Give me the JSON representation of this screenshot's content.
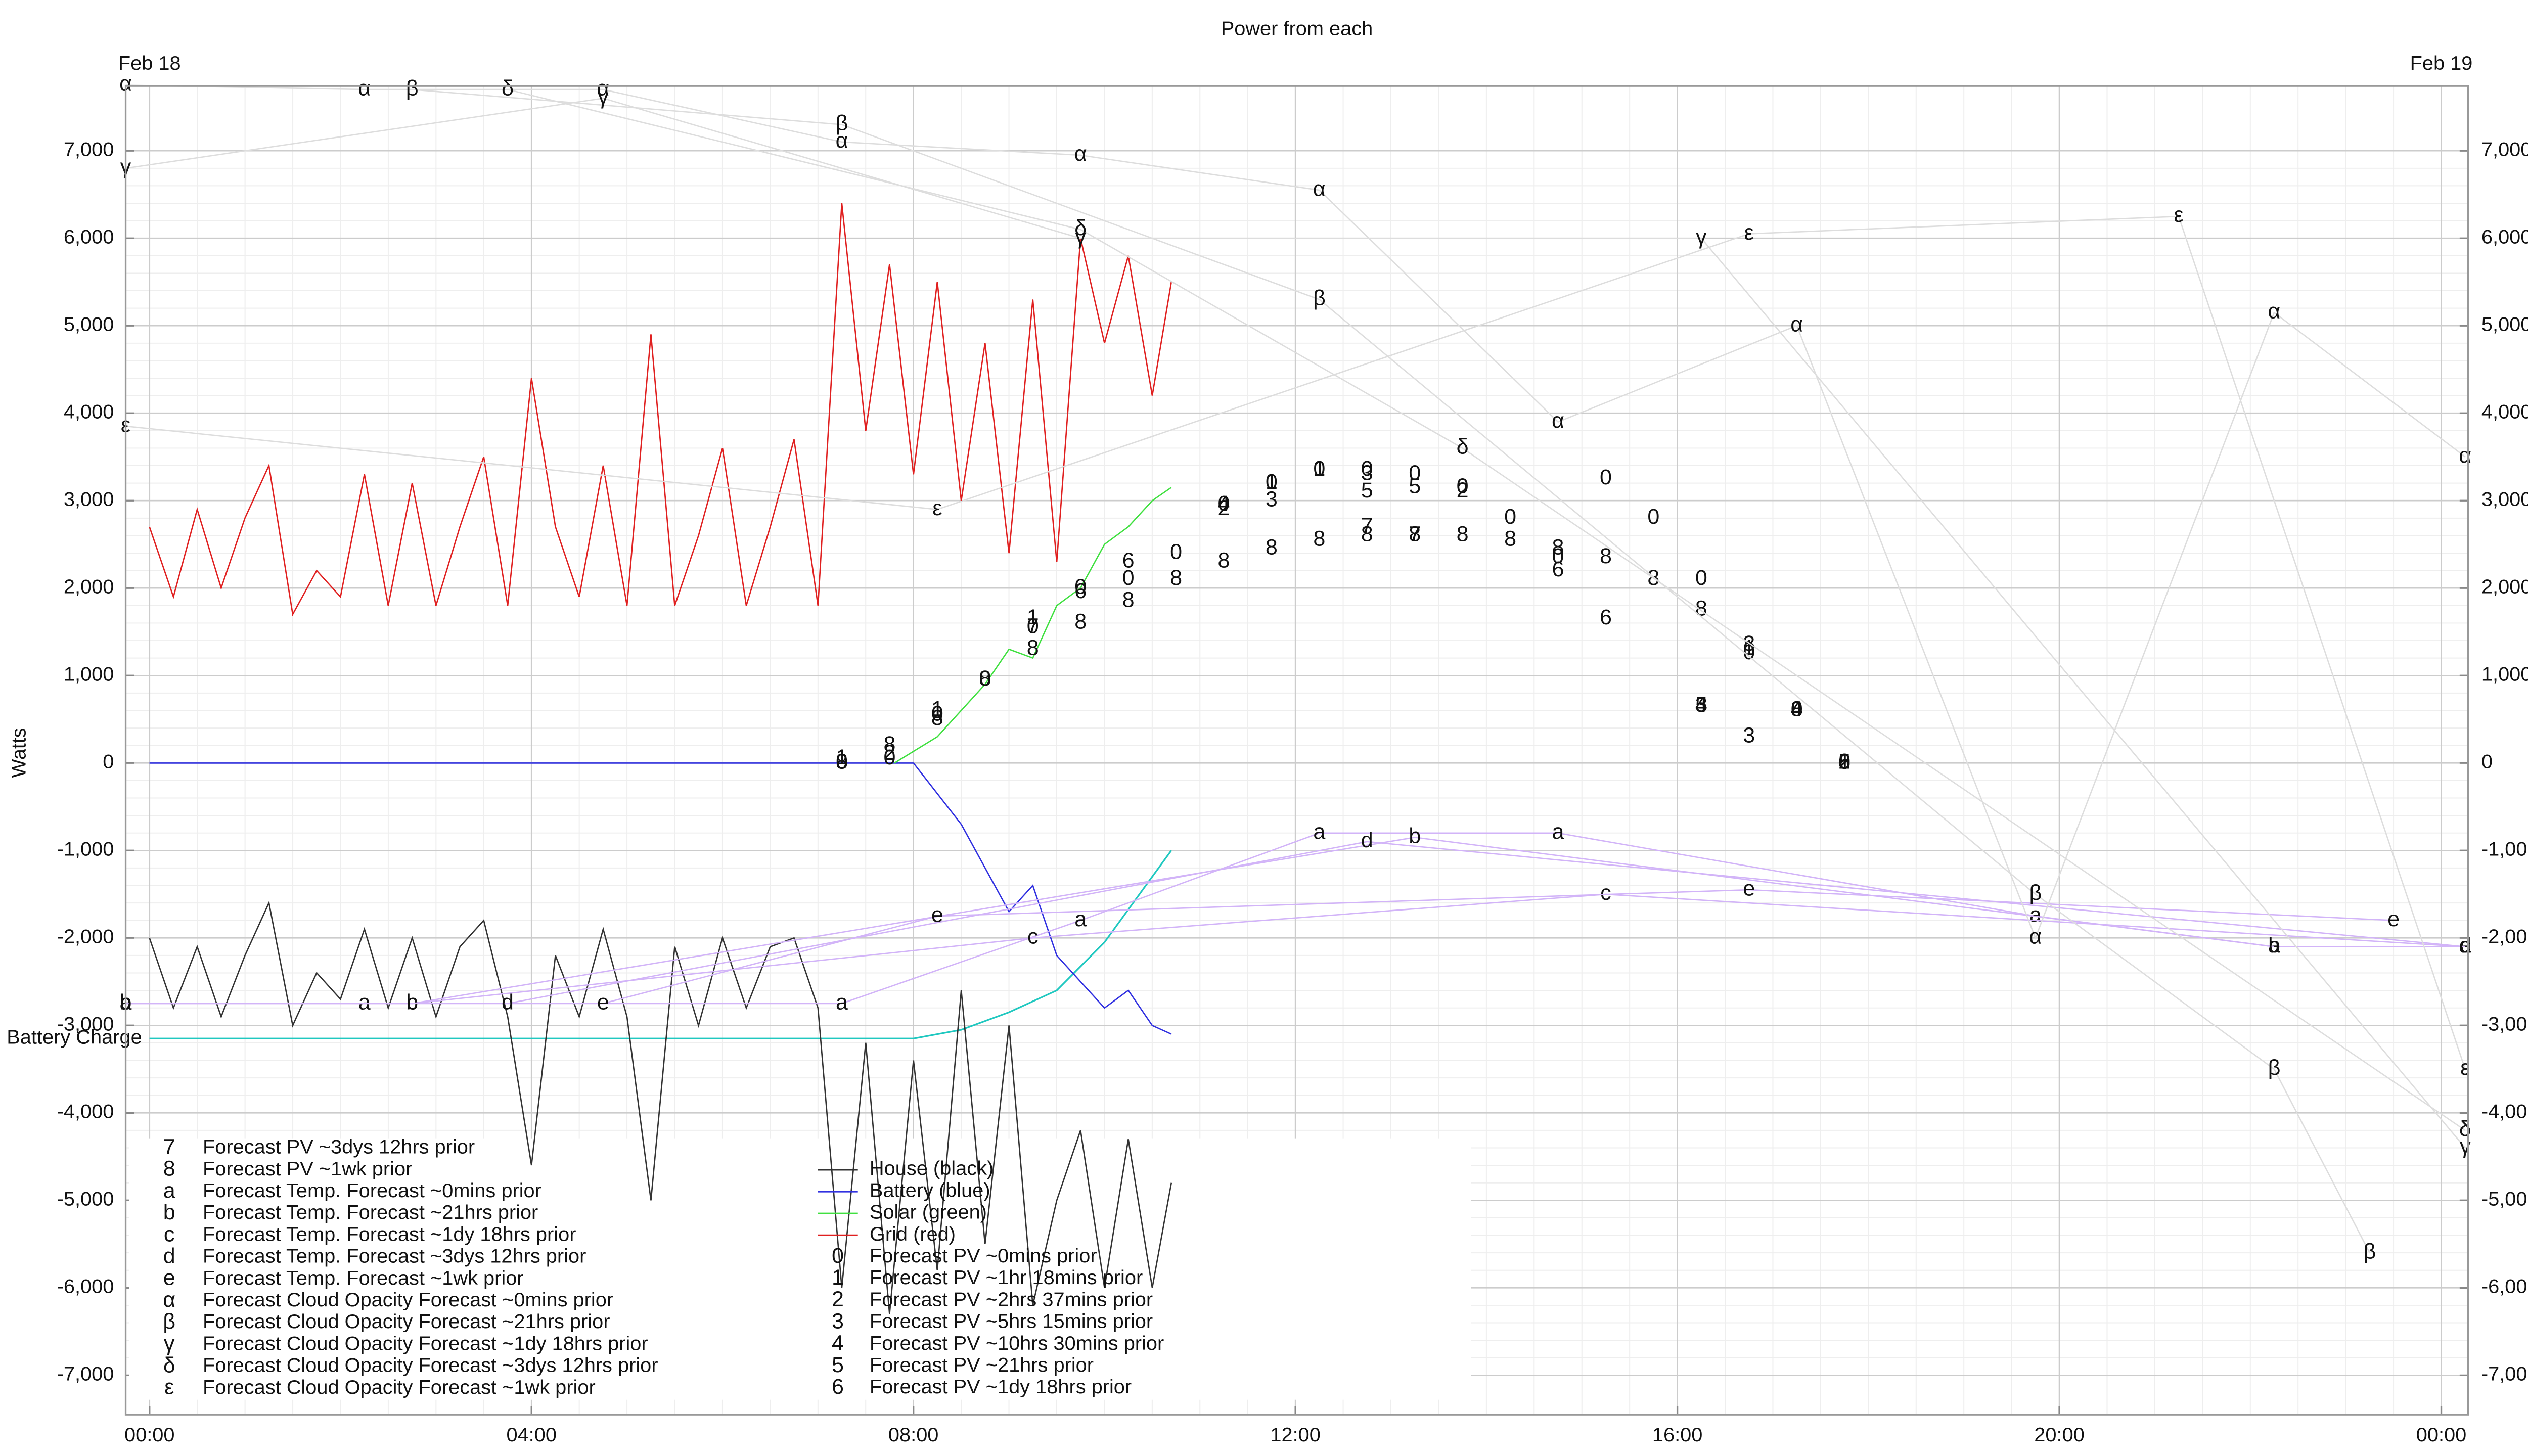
{
  "chart_data": {
    "type": "line",
    "title": "Power from each",
    "ylabel": "Watts",
    "xlim": [
      -0.25,
      24.28
    ],
    "ylim": [
      -7450,
      7740
    ],
    "grid": true,
    "minor_grid": true,
    "date_labels": [
      {
        "value": 0,
        "label": "Feb 18"
      },
      {
        "value": 24,
        "label": "Feb 19"
      }
    ],
    "xticks": [
      {
        "value": 0,
        "label": "00:00"
      },
      {
        "value": 4,
        "label": "04:00"
      },
      {
        "value": 8,
        "label": "08:00"
      },
      {
        "value": 12,
        "label": "12:00"
      },
      {
        "value": 16,
        "label": "16:00"
      },
      {
        "value": 20,
        "label": "20:00"
      },
      {
        "value": 24,
        "label": "00:00"
      }
    ],
    "yticks": [
      {
        "value": -7000,
        "label": "-7,000"
      },
      {
        "value": -6000,
        "label": "-6,000"
      },
      {
        "value": -5000,
        "label": "-5,000"
      },
      {
        "value": -4000,
        "label": "-4,000"
      },
      {
        "value": -3000,
        "label": "-3,000"
      },
      {
        "value": -2000,
        "label": "-2,000"
      },
      {
        "value": -1000,
        "label": "-1,000"
      },
      0,
      {
        "value": 1000,
        "label": "1,000"
      },
      {
        "value": 2000,
        "label": "2,000"
      },
      {
        "value": 3000,
        "label": "3,000"
      },
      {
        "value": 4000,
        "label": "4,000"
      },
      {
        "value": 5000,
        "label": "5,000"
      },
      {
        "value": 6000,
        "label": "6,000"
      },
      {
        "value": 7000,
        "label": "7,000"
      }
    ],
    "battery_charge": {
      "name": "Battery Charge",
      "color": "#20c8c0",
      "x": [
        0,
        2,
        4,
        6,
        8,
        8.5,
        9,
        9.5,
        10,
        10.3,
        10.7
      ],
      "values": [
        -3150,
        -3150,
        -3150,
        -3150,
        -3150,
        -3050,
        -2850,
        -2600,
        -2050,
        -1600,
        -1000
      ]
    },
    "series": [
      {
        "name": "House (black)",
        "color": "#333333",
        "style": "line",
        "x": [
          0,
          0.25,
          0.5,
          0.75,
          1,
          1.25,
          1.5,
          1.75,
          2,
          2.25,
          2.5,
          2.75,
          3,
          3.25,
          3.5,
          3.75,
          4,
          4.25,
          4.5,
          4.75,
          5,
          5.25,
          5.5,
          5.75,
          6,
          6.25,
          6.5,
          6.75,
          7,
          7.25,
          7.5,
          7.75,
          8,
          8.25,
          8.5,
          8.75,
          9,
          9.25,
          9.5,
          9.75,
          10,
          10.25,
          10.5,
          10.7
        ],
        "values": [
          -2000,
          -2800,
          -2100,
          -2900,
          -2200,
          -1600,
          -3000,
          -2400,
          -2700,
          -1900,
          -2800,
          -2000,
          -2900,
          -2100,
          -1800,
          -2900,
          -4600,
          -2200,
          -2900,
          -1900,
          -2900,
          -5000,
          -2100,
          -3000,
          -2000,
          -2800,
          -2100,
          -2000,
          -2800,
          -6000,
          -3200,
          -6300,
          -3400,
          -5800,
          -2600,
          -5500,
          -3000,
          -6200,
          -5000,
          -4200,
          -6000,
          -4300,
          -6000,
          -4800
        ]
      },
      {
        "name": "Battery (blue)",
        "color": "#3030e0",
        "style": "line",
        "x": [
          0,
          1,
          2,
          3,
          4,
          5,
          6,
          6.9,
          7,
          8,
          8.5,
          9,
          9.25,
          9.5,
          9.75,
          10,
          10.25,
          10.5,
          10.7
        ],
        "values": [
          0,
          0,
          0,
          0,
          0,
          0,
          0,
          0,
          0,
          0,
          -700,
          -1700,
          -1400,
          -2200,
          -2500,
          -2800,
          -2600,
          -3000,
          -3100
        ]
      },
      {
        "name": "Solar (green)",
        "color": "#40e040",
        "style": "line",
        "x": [
          7.8,
          8.25,
          8.5,
          8.75,
          9,
          9.25,
          9.5,
          9.75,
          10,
          10.25,
          10.5,
          10.7
        ],
        "values": [
          0,
          300,
          600,
          900,
          1300,
          1200,
          1800,
          2000,
          2500,
          2700,
          3000,
          3150
        ]
      },
      {
        "name": "Grid (red)",
        "color": "#e02020",
        "style": "line",
        "x": [
          0,
          0.25,
          0.5,
          0.75,
          1,
          1.25,
          1.5,
          1.75,
          2,
          2.25,
          2.5,
          2.75,
          3,
          3.25,
          3.5,
          3.75,
          4,
          4.25,
          4.5,
          4.75,
          5,
          5.25,
          5.5,
          5.75,
          6,
          6.25,
          6.5,
          6.75,
          7,
          7.25,
          7.5,
          7.75,
          8,
          8.25,
          8.5,
          8.75,
          9,
          9.25,
          9.5,
          9.75,
          10,
          10.25,
          10.5,
          10.7
        ],
        "values": [
          2700,
          1900,
          2900,
          2000,
          2800,
          3400,
          1700,
          2200,
          1900,
          3300,
          1800,
          3200,
          1800,
          2700,
          3500,
          1800,
          4400,
          2700,
          1900,
          3400,
          1800,
          4900,
          1800,
          2600,
          3600,
          1800,
          2700,
          3700,
          1800,
          6400,
          3800,
          5700,
          3300,
          5500,
          3000,
          4800,
          2400,
          5300,
          2300,
          6000,
          4800,
          5800,
          4200,
          5500
        ]
      },
      {
        "name": "Forecast PV ~0mins prior",
        "color": "#a88418",
        "style": "points",
        "marker": "0",
        "x": [
          7.25,
          7.75,
          8.25,
          8.75,
          9.25,
          9.75,
          10.25,
          10.75,
          11.25,
          11.75,
          12.25,
          12.75,
          13.25,
          13.75,
          14.25,
          14.75,
          15.25,
          15.75,
          16.25,
          16.75,
          17.25,
          17.75
        ],
        "values": [
          0,
          50,
          550,
          950,
          1550,
          2000,
          2100,
          2400,
          2950,
          3200,
          3350,
          3350,
          3300,
          3150,
          2800,
          2350,
          3250,
          2800,
          2100,
          1250,
          600,
          0
        ]
      },
      {
        "name": "Forecast PV ~1hr 18mins prior",
        "color": "#a88418",
        "style": "points",
        "marker": "1",
        "x": [
          7.25,
          8.25,
          9.25,
          11.75,
          12.25,
          16.75,
          17.75
        ],
        "values": [
          50,
          600,
          1650,
          3200,
          3350,
          1300,
          0
        ]
      },
      {
        "name": "Forecast PV ~2hrs 37mins prior",
        "color": "#a88418",
        "style": "points",
        "marker": "2",
        "x": [
          7.75,
          11.25,
          13.75,
          17.75
        ],
        "values": [
          100,
          2900,
          3100,
          0
        ]
      },
      {
        "name": "Forecast PV ~5hrs 15mins prior",
        "color": "#8c3c2c",
        "style": "points",
        "marker": "3",
        "x": [
          11.75,
          12.75,
          16.25,
          16.75
        ],
        "values": [
          3000,
          3300,
          650,
          300
        ]
      },
      {
        "name": "Forecast PV ~10hrs 30mins prior",
        "color": "#8c3c2c",
        "style": "points",
        "marker": "4",
        "x": [
          11.25,
          16.25,
          17.25
        ],
        "values": [
          2950,
          650,
          600
        ]
      },
      {
        "name": "Forecast PV ~21hrs prior",
        "color": "#8c3048",
        "style": "points",
        "marker": "5",
        "x": [
          12.75,
          13.25,
          16.25,
          17.75
        ],
        "values": [
          3100,
          3150,
          650,
          0
        ]
      },
      {
        "name": "Forecast PV ~1dy 18hrs prior",
        "color": "#8c3048",
        "style": "points",
        "marker": "6",
        "x": [
          9.75,
          10.25,
          14.75,
          15.25,
          17.75
        ],
        "values": [
          1950,
          2300,
          2200,
          1650,
          0
        ]
      },
      {
        "name": "Forecast PV ~3dys 12hrs prior",
        "color": "#800080",
        "style": "points",
        "marker": "7",
        "x": [
          9.25,
          12.75,
          13.25
        ],
        "values": [
          1550,
          2700,
          2600
        ]
      },
      {
        "name": "Forecast PV ~1wk prior",
        "color": "#800080",
        "style": "points",
        "marker": "8",
        "x": [
          7.25,
          7.75,
          8.25,
          8.75,
          9.25,
          9.75,
          10.25,
          10.75,
          11.25,
          11.75,
          12.25,
          12.75,
          13.25,
          13.75,
          14.25,
          14.75,
          15.25,
          15.75,
          16.25,
          16.75,
          17.25,
          17.75
        ],
        "values": [
          0,
          200,
          500,
          950,
          1300,
          1600,
          1850,
          2100,
          2300,
          2450,
          2550,
          2600,
          2600,
          2600,
          2550,
          2450,
          2350,
          2100,
          1750,
          1350,
          600,
          0
        ]
      },
      {
        "name": "Forecast Temp. Forecast ~0mins prior",
        "color": "#b070f0",
        "style": "linepoints",
        "marker": "a",
        "x": [
          -0.25,
          2.25,
          7.25,
          9.75,
          12.25,
          14.75,
          19.75,
          22.25,
          24.25
        ],
        "values": [
          -2750,
          -2750,
          -2750,
          -1800,
          -800,
          -800,
          -1750,
          -2100,
          -2100
        ]
      },
      {
        "name": "Forecast Temp. Forecast ~21hrs prior",
        "color": "#b070f0",
        "style": "linepoints",
        "marker": "b",
        "x": [
          -0.25,
          2.75,
          13.25,
          22.25
        ],
        "values": [
          -2750,
          -2750,
          -850,
          -2100
        ]
      },
      {
        "name": "Forecast Temp. Forecast ~1dy 18hrs prior",
        "color": "#b070f0",
        "style": "linepoints",
        "marker": "c",
        "x": [
          2.75,
          9.25,
          15.25,
          24.25
        ],
        "values": [
          -2750,
          -2000,
          -1500,
          -2100
        ]
      },
      {
        "name": "Forecast Temp. Forecast ~3dys 12hrs prior",
        "color": "#b070f0",
        "style": "linepoints",
        "marker": "d",
        "x": [
          3.75,
          12.75,
          24.25
        ],
        "values": [
          -2750,
          -900,
          -2100
        ]
      },
      {
        "name": "Forecast Temp. Forecast ~1wk prior",
        "color": "#b070f0",
        "style": "linepoints",
        "marker": "e",
        "x": [
          4.75,
          8.25,
          16.75,
          23.5
        ],
        "values": [
          -2750,
          -1750,
          -1450,
          -1800
        ]
      },
      {
        "name": "Forecast Cloud Opacity Forecast ~0mins prior",
        "color": "#aaaaaa",
        "style": "linepoints",
        "marker": "α",
        "x": [
          -0.25,
          2.25,
          4.75,
          7.25,
          9.75,
          12.25,
          14.75,
          17.25,
          19.75,
          22.25,
          24.25
        ],
        "values": [
          7750,
          7700,
          7700,
          7100,
          6950,
          6550,
          3900,
          5000,
          -2000,
          5150,
          3500
        ]
      },
      {
        "name": "Forecast Cloud Opacity Forecast ~21hrs prior",
        "color": "#aaaaaa",
        "style": "linepoints",
        "marker": "β",
        "x": [
          2.75,
          7.25,
          12.25,
          19.75,
          22.25,
          23.25
        ],
        "values": [
          7700,
          7300,
          5300,
          -1500,
          -3500,
          -5600
        ]
      },
      {
        "name": "Forecast Cloud Opacity Forecast ~1dy 18hrs prior",
        "color": "#aaaaaa",
        "style": "linepoints",
        "marker": "γ",
        "x": [
          -0.25,
          4.75,
          9.75,
          16.25,
          24.25
        ],
        "values": [
          6800,
          7600,
          6000,
          6000,
          -4400
        ]
      },
      {
        "name": "Forecast Cloud Opacity Forecast ~3dys 12hrs prior",
        "color": "#aaaaaa",
        "style": "linepoints",
        "marker": "δ",
        "x": [
          3.75,
          9.75,
          13.75,
          24.25
        ],
        "values": [
          7700,
          6100,
          3600,
          -4200
        ]
      },
      {
        "name": "Forecast Cloud Opacity Forecast ~1wk prior",
        "color": "#aaaaaa",
        "style": "linepoints",
        "marker": "ε",
        "x": [
          -0.25,
          8.25,
          16.75,
          21.25,
          24.25
        ],
        "values": [
          3850,
          2900,
          6050,
          6250,
          -3500
        ]
      }
    ]
  }
}
